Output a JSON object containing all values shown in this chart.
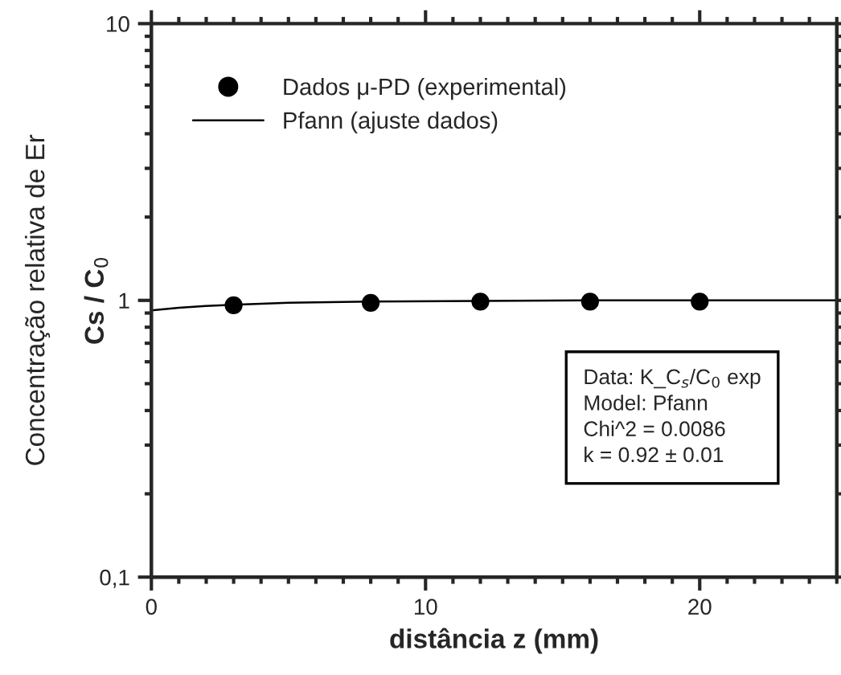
{
  "chart_data": {
    "type": "scatter",
    "xlabel": "distância z (mm)",
    "ylabel": "Concentração relativa de Er\nCs / C$_{0}$",
    "series": [
      {
        "name": "Dados μ-PD (experimental)",
        "color": "#000000",
        "marker": "circle",
        "x": [
          3,
          8,
          12,
          16,
          20
        ],
        "values": [
          0.96,
          0.98,
          0.99,
          0.99,
          0.99
        ]
      },
      {
        "name": "Pfann (ajuste dados)",
        "type": "line",
        "color": "#000000",
        "marker": "none",
        "line_style": "solid",
        "x": [
          0,
          1,
          2,
          3,
          5,
          8,
          12,
          16,
          20,
          25
        ],
        "values": [
          0.92,
          0.94,
          0.955,
          0.965,
          0.98,
          0.99,
          0.995,
          1.0,
          1.0,
          1.0
        ]
      }
    ],
    "log": "y",
    "xlim": [
      0,
      25
    ],
    "xticks": [
      0,
      10,
      20
    ],
    "ylim": [
      0.1,
      10
    ],
    "yticks": [
      {
        "value": 0.1,
        "label": "0,1"
      },
      1,
      10
    ],
    "grid": false,
    "legend": "top left",
    "annotations": [
      "Data: K_C$_{s}$/C$_{0}$ exp\nModel: Pfann\nChi^2 = 0.0086\nk = 0.92 ± 0.01"
    ]
  }
}
